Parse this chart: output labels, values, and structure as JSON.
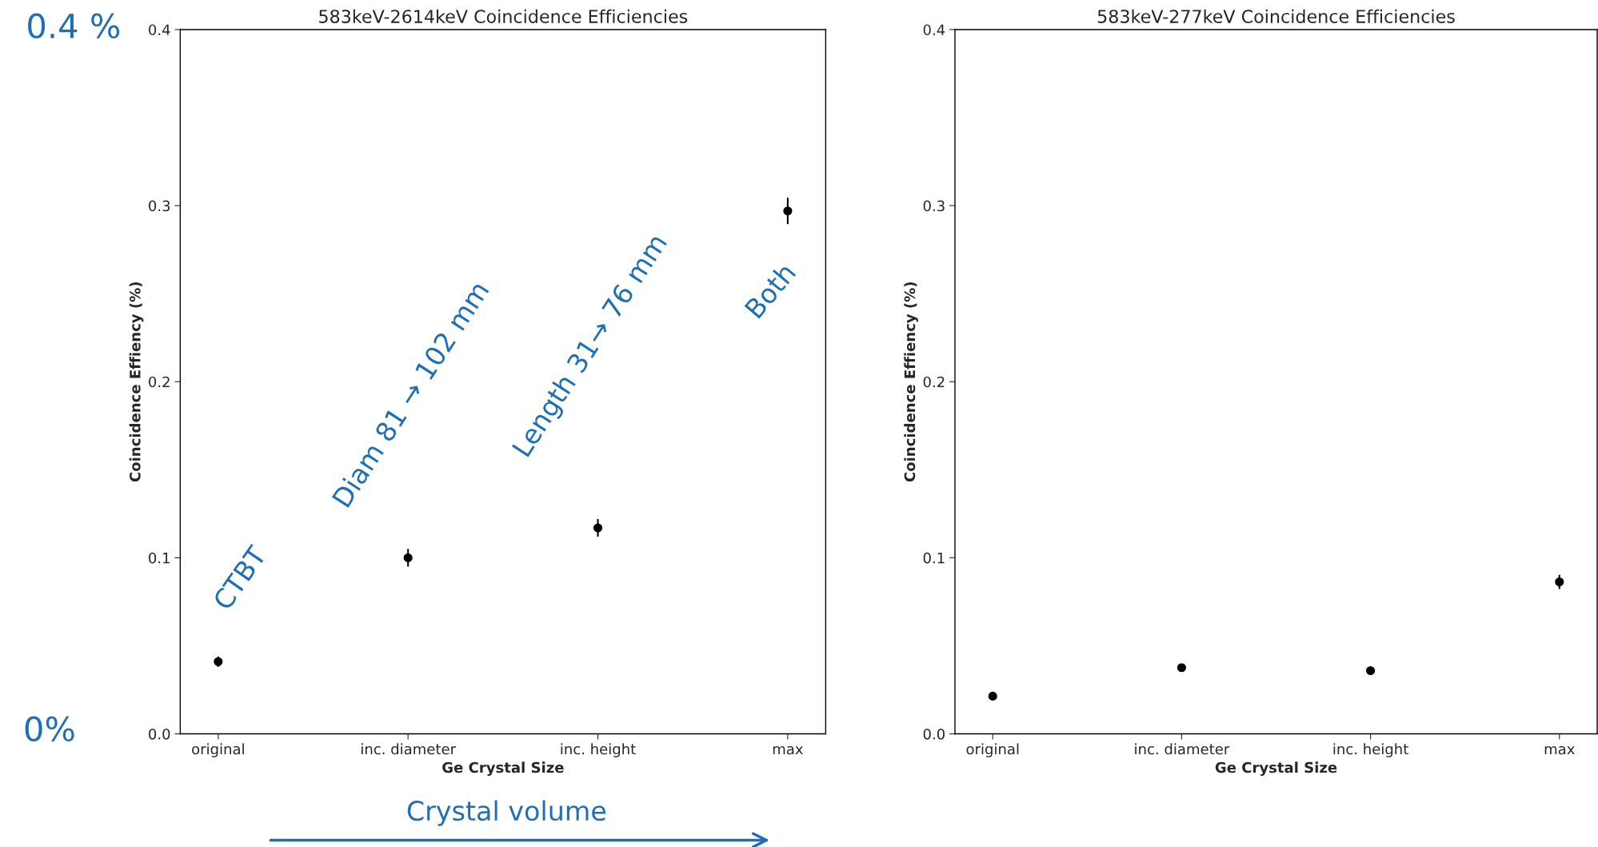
{
  "chart_data": [
    {
      "type": "scatter",
      "title": "583keV-2614keV Coincidence Efficiencies",
      "xlabel": "Ge Crystal Size",
      "ylabel": "Coincidence Effiency (%)",
      "categories": [
        "original",
        "inc. diameter",
        "inc. height",
        "max"
      ],
      "series": [
        {
          "color": "#000000",
          "values": [
            0.041,
            0.1,
            0.117,
            0.297
          ],
          "errors": [
            0.003,
            0.005,
            0.005,
            0.0075
          ]
        }
      ],
      "ylim": [
        0,
        0.4
      ],
      "yticks": [
        {
          "value": 0,
          "label": "0.0"
        },
        0.1,
        0.2,
        0.3,
        0.4
      ],
      "grid": false,
      "marker": "circle",
      "annotations": [
        "0.4 %",
        "0%",
        "CTBT",
        "Diam 81 → 102 mm",
        "Length 31→ 76 mm",
        "Both",
        "Crystal volume"
      ]
    },
    {
      "type": "scatter",
      "title": "583keV-277keV Coincidence Efficiencies",
      "xlabel": "Ge Crystal Size",
      "ylabel": "Coincidence Effiency (%)",
      "categories": [
        "original",
        "inc. diameter",
        "inc. height",
        "max"
      ],
      "series": [
        {
          "color": "#000000",
          "values": [
            0.0214,
            0.0376,
            0.0359,
            0.0863
          ],
          "errors": [
            0.002,
            0.002,
            0.002,
            0.004
          ]
        }
      ],
      "ylim": [
        0,
        0.4
      ],
      "yticks": [
        {
          "value": 0,
          "label": "0.0"
        },
        0.1,
        0.2,
        0.3,
        0.4
      ],
      "grid": false,
      "marker": "circle"
    }
  ]
}
